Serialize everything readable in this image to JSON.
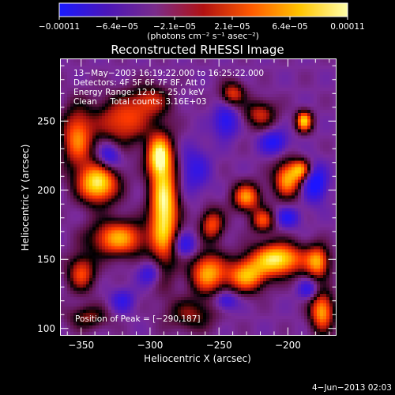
{
  "chart_data": {
    "type": "heatmap",
    "title": "Reconstructed RHESSI Image",
    "xlabel": "Heliocentric X (arcsec)",
    "ylabel": "Heliocentric Y (arcsec)",
    "xlim": [
      -365,
      -165
    ],
    "ylim": [
      95,
      295
    ],
    "x_ticks": [
      -350,
      -300,
      -250,
      -200
    ],
    "y_ticks": [
      100,
      150,
      200,
      250
    ],
    "x_tick_labels": [
      "−350",
      "−300",
      "−250",
      "−200"
    ],
    "y_tick_labels": [
      "100",
      "150",
      "200",
      "250"
    ],
    "colorbar": {
      "range": [
        -0.00011,
        0.00011
      ],
      "tick_labels": [
        "−0.00011",
        "−6.4e−05",
        "−2.1e−05",
        "2.1e−05",
        "6.4e−05",
        "0.00011"
      ],
      "unit_label": "(photons cm⁻² s⁻¹ asec⁻²)",
      "colormap": [
        "#1a1aff",
        "#4b16b8",
        "#7a2c8a",
        "#b11212",
        "#ff5a00",
        "#ffc400",
        "#ffffaa"
      ]
    },
    "info_lines": [
      "13−May−2003 16:19:22.000 to 16:25:22.000",
      "Detectors: 4F 5F 6F 7F 8F, Att 0",
      "Energy Range: 12.0 − 25.0 keV",
      "Clean     Total counts: 3.16E+03"
    ],
    "peak_label": "Position of Peak = [−290,187]",
    "peak": [
      -290,
      187
    ],
    "blobs": [
      {
        "x": -290,
        "y": 187,
        "sx": 7,
        "sy": 28,
        "amp": 1.0
      },
      {
        "x": -294,
        "y": 225,
        "sx": 6,
        "sy": 10,
        "amp": 0.75
      },
      {
        "x": -338,
        "y": 205,
        "sx": 10,
        "sy": 10,
        "amp": 0.95
      },
      {
        "x": -323,
        "y": 165,
        "sx": 14,
        "sy": 9,
        "amp": 0.75
      },
      {
        "x": -353,
        "y": 238,
        "sx": 8,
        "sy": 15,
        "amp": 0.65
      },
      {
        "x": -320,
        "y": 250,
        "sx": 14,
        "sy": 12,
        "amp": 0.55
      },
      {
        "x": -350,
        "y": 140,
        "sx": 7,
        "sy": 9,
        "amp": 0.55
      },
      {
        "x": -258,
        "y": 140,
        "sx": 9,
        "sy": 10,
        "amp": 0.75
      },
      {
        "x": -255,
        "y": 175,
        "sx": 6,
        "sy": 8,
        "amp": 0.55
      },
      {
        "x": -230,
        "y": 195,
        "sx": 7,
        "sy": 7,
        "amp": 0.7
      },
      {
        "x": -230,
        "y": 138,
        "sx": 10,
        "sy": 8,
        "amp": 0.75
      },
      {
        "x": -218,
        "y": 178,
        "sx": 6,
        "sy": 6,
        "amp": 0.55
      },
      {
        "x": -207,
        "y": 150,
        "sx": 13,
        "sy": 8,
        "amp": 0.95
      },
      {
        "x": -200,
        "y": 208,
        "sx": 7,
        "sy": 9,
        "amp": 0.75
      },
      {
        "x": -190,
        "y": 215,
        "sx": 5,
        "sy": 5,
        "amp": 0.6
      },
      {
        "x": -188,
        "y": 250,
        "sx": 4,
        "sy": 5,
        "amp": 0.85
      },
      {
        "x": -178,
        "y": 148,
        "sx": 6,
        "sy": 8,
        "amp": 0.7
      },
      {
        "x": -175,
        "y": 112,
        "sx": 6,
        "sy": 10,
        "amp": 0.75
      },
      {
        "x": -240,
        "y": 270,
        "sx": 6,
        "sy": 6,
        "amp": 0.5
      },
      {
        "x": -220,
        "y": 255,
        "sx": 8,
        "sy": 7,
        "amp": 0.45
      },
      {
        "x": -345,
        "y": 108,
        "sx": 10,
        "sy": 6,
        "amp": 0.35
      },
      {
        "x": -300,
        "y": 265,
        "sx": 10,
        "sy": 8,
        "amp": 0.4
      },
      {
        "x": -270,
        "y": 110,
        "sx": 12,
        "sy": 8,
        "amp": 0.35
      }
    ],
    "dips": [
      {
        "x": -330,
        "y": 225,
        "sx": 6,
        "sy": 7,
        "amp": 0.55
      },
      {
        "x": -268,
        "y": 215,
        "sx": 8,
        "sy": 12,
        "amp": 0.4
      },
      {
        "x": -245,
        "y": 250,
        "sx": 6,
        "sy": 8,
        "amp": 0.55
      },
      {
        "x": -210,
        "y": 235,
        "sx": 7,
        "sy": 6,
        "amp": 0.55
      },
      {
        "x": -180,
        "y": 205,
        "sx": 6,
        "sy": 9,
        "amp": 0.7
      },
      {
        "x": -275,
        "y": 160,
        "sx": 6,
        "sy": 6,
        "amp": 0.5
      },
      {
        "x": -300,
        "y": 140,
        "sx": 6,
        "sy": 6,
        "amp": 0.45
      },
      {
        "x": -245,
        "y": 120,
        "sx": 6,
        "sy": 5,
        "amp": 0.45
      },
      {
        "x": -200,
        "y": 180,
        "sx": 6,
        "sy": 5,
        "amp": 0.5
      },
      {
        "x": -320,
        "y": 120,
        "sx": 6,
        "sy": 6,
        "amp": 0.4
      },
      {
        "x": -185,
        "y": 128,
        "sx": 5,
        "sy": 5,
        "amp": 0.45
      }
    ]
  },
  "footer": {
    "timestamp": "4−Jun−2013 02:03"
  }
}
